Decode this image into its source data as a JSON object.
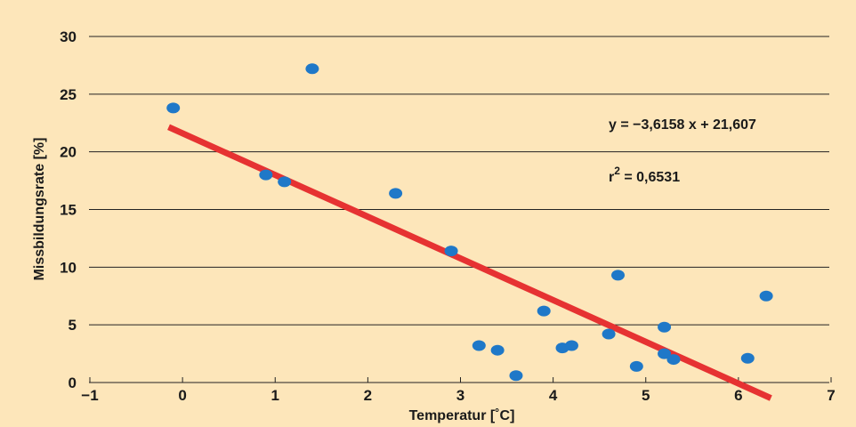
{
  "colors": {
    "background": "#fde6ba",
    "points": "#1f78c8",
    "trendline": "#e63232",
    "gridlines": "#222222",
    "text": "#1a1a1a"
  },
  "chart_data": {
    "type": "scatter",
    "title": "",
    "xlabel": "Temperatur [˚C]",
    "ylabel": "Missbildungsrate  [%]",
    "xlim": [
      -1,
      7
    ],
    "ylim": [
      0,
      30
    ],
    "xticks": [
      -1,
      0,
      1,
      2,
      3,
      4,
      5,
      6,
      7
    ],
    "yticks": [
      0,
      5,
      10,
      15,
      20,
      25,
      30
    ],
    "xtick_labels": [
      "−1",
      "0",
      "1",
      "2",
      "3",
      "4",
      "5",
      "6",
      "7"
    ],
    "ytick_labels": [
      "0",
      "5",
      "10",
      "15",
      "20",
      "25",
      "30"
    ],
    "grid": "horizontal",
    "points": [
      {
        "x": -0.1,
        "y": 23.8
      },
      {
        "x": 0.9,
        "y": 18.0
      },
      {
        "x": 1.1,
        "y": 17.4
      },
      {
        "x": 1.4,
        "y": 27.2
      },
      {
        "x": 2.3,
        "y": 16.4
      },
      {
        "x": 2.9,
        "y": 11.4
      },
      {
        "x": 3.2,
        "y": 3.2
      },
      {
        "x": 3.4,
        "y": 2.8
      },
      {
        "x": 3.6,
        "y": 0.6
      },
      {
        "x": 3.9,
        "y": 6.2
      },
      {
        "x": 4.1,
        "y": 3.0
      },
      {
        "x": 4.2,
        "y": 3.2
      },
      {
        "x": 4.6,
        "y": 4.2
      },
      {
        "x": 4.7,
        "y": 9.3
      },
      {
        "x": 4.9,
        "y": 1.4
      },
      {
        "x": 5.2,
        "y": 4.8
      },
      {
        "x": 5.2,
        "y": 2.5
      },
      {
        "x": 5.3,
        "y": 2.0
      },
      {
        "x": 6.1,
        "y": 2.1
      },
      {
        "x": 6.3,
        "y": 7.5
      }
    ],
    "trendline": {
      "slope": -3.6158,
      "intercept": 21.607,
      "x_range": [
        -0.15,
        6.35
      ]
    },
    "annotations": {
      "equation": "y = −3,6158 x + 21,607",
      "r2_prefix": "r",
      "r2_exponent": "2",
      "r2_value": " = 0,6531"
    }
  }
}
